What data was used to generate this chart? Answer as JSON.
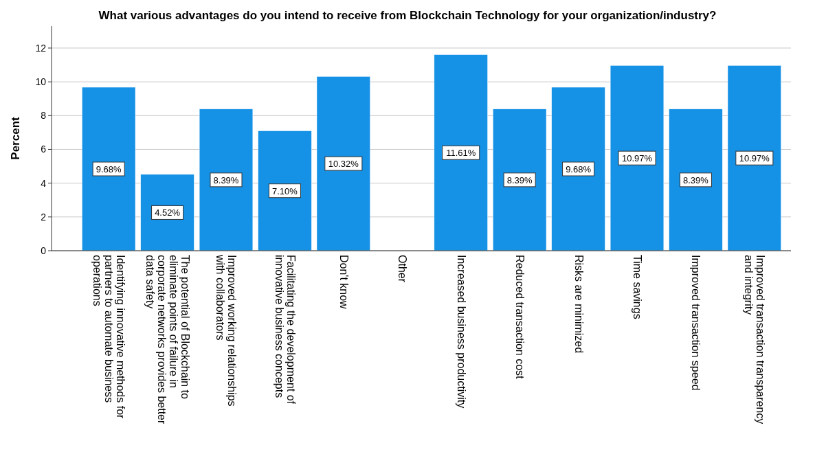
{
  "chart_data": {
    "type": "bar",
    "title": "What various advantages do you intend to receive from Blockchain Technology for your organization/industry?",
    "ylabel": "Percent",
    "categories": [
      "Identifying innovative methods for partners to automate business operations",
      "The potential of Blockchain to eliminate points of failure in corporate networks provides better data safety",
      "Improved working relationships with collaborators",
      "Facilitating the development of innovative business concepts",
      "Don't know",
      "Other",
      "Increased business productivity",
      "Reduced transaction cost",
      "Risks are minimized",
      "Time savings",
      "Improved transaction speed",
      "Improved transaction transparency and integrity"
    ],
    "values": [
      9.68,
      4.52,
      8.39,
      7.1,
      10.32,
      null,
      11.61,
      8.39,
      9.68,
      10.97,
      8.39,
      10.97
    ],
    "value_labels": [
      "9.68%",
      "4.52%",
      "8.39%",
      "7.10%",
      "10.32%",
      null,
      "11.61%",
      "8.39%",
      "9.68%",
      "10.97%",
      "8.39%",
      "10.97%"
    ],
    "color": "#1591e6",
    "ylim": [
      0,
      13.3
    ],
    "yticks": [
      0,
      2,
      4,
      6,
      8,
      10,
      12
    ],
    "grid": "y"
  }
}
